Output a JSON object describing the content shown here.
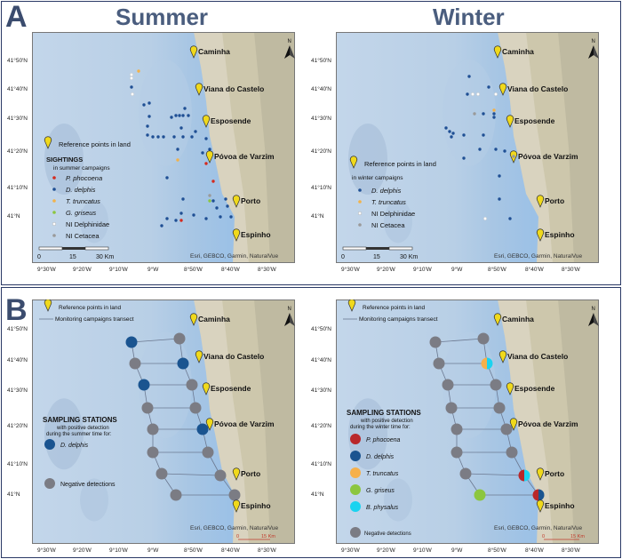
{
  "panel_a": {
    "letter": "A"
  },
  "panel_b": {
    "letter": "B"
  },
  "titles": {
    "summer": "Summer",
    "winter": "Winter"
  },
  "places": [
    "Caminha",
    "Viana do Castelo",
    "Esposende",
    "Póvoa de Varzim",
    "Porto",
    "Espinho"
  ],
  "lat_labels": [
    "41°50'N",
    "41°40'N",
    "41°30'N",
    "41°20'N",
    "41°10'N",
    "41°N"
  ],
  "lon_labels": [
    "9°30'W",
    "9°20'W",
    "9°10'W",
    "9°W",
    "8°50'W",
    "8°40'W",
    "8°30'W"
  ],
  "attribution": "Esri, GEBCO, Garmin, NaturalVue",
  "north_label": "N",
  "scale_a": {
    "ticks": [
      "0",
      "15",
      "30 Km"
    ]
  },
  "scale_b": {
    "ticks": [
      "0",
      "15 Km"
    ]
  },
  "legend_reference": "Reference points in land",
  "legend_transect": "Monitoring campaigns transect",
  "summer_sightings": {
    "title": "SIGHTINGS",
    "subtitle": "in summer campaigns",
    "items": [
      {
        "label": "P. phocoena",
        "color": "#d42a1e"
      },
      {
        "label": "D. delphis",
        "color": "#1f4f94"
      },
      {
        "label": "T. truncatus",
        "color": "#f2b24a"
      },
      {
        "label": "G. griseus",
        "color": "#8cc63f"
      },
      {
        "label": "NI Delphinidae",
        "color": "#ffffff"
      },
      {
        "label": "NI Cetacea",
        "color": "#9a9a9a"
      }
    ]
  },
  "winter_sightings": {
    "subtitle": "in winter campaigns",
    "items": [
      {
        "label": "D. delphis",
        "color": "#1f4f94"
      },
      {
        "label": "T. truncatus",
        "color": "#f2b24a"
      },
      {
        "label": "NI Delphinidae",
        "color": "#ffffff"
      },
      {
        "label": "NI Cetacea",
        "color": "#9a9a9a"
      }
    ]
  },
  "summer_stations_legend": {
    "title": "SAMPLING STATIONS",
    "line1": "with positive detection",
    "line2": "during the summer time for:",
    "items": [
      {
        "label": "D. delphis",
        "color": "#1a5490"
      }
    ],
    "negative": "Negative detections"
  },
  "winter_stations_legend": {
    "title": "SAMPLING STATIONS",
    "line1": "with positive detection",
    "line2": "during the winter time for:",
    "items": [
      {
        "label": "P. phocoena",
        "color": "#b9272a"
      },
      {
        "label": "D. delphis",
        "color": "#1a5490"
      },
      {
        "label": "T. truncatus",
        "color": "#f6b04a"
      },
      {
        "label": "G. griseus",
        "color": "#8cc63f"
      },
      {
        "label": "B. physalus",
        "color": "#1ad3f0"
      }
    ],
    "negative": "Negative detections"
  },
  "colors": {
    "negative": "#7b7c84",
    "frame": "#2b3a66",
    "title": "#4a5d7e"
  }
}
